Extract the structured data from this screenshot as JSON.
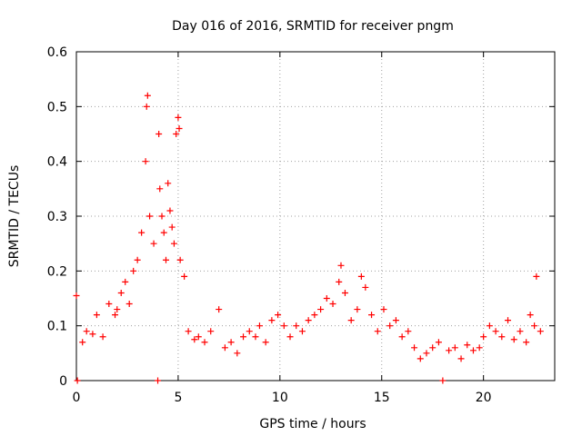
{
  "chart_data": {
    "type": "scatter",
    "title": "Day 016 of 2016, SRMTID for receiver pngm",
    "xlabel": "GPS time / hours",
    "ylabel": "SRMTID / TECUs",
    "xlim": [
      0,
      23.5
    ],
    "ylim": [
      0,
      0.6
    ],
    "x_ticks": [
      0,
      5,
      10,
      15,
      20
    ],
    "y_ticks": [
      0,
      0.1,
      0.2,
      0.3,
      0.4,
      0.5,
      0.6
    ],
    "x_tick_labels": [
      "0",
      "5",
      "10",
      "15",
      "20"
    ],
    "y_tick_labels": [
      "0",
      "0.1",
      "0.2",
      "0.3",
      "0.4",
      "0.5",
      "0.6"
    ],
    "grid": true,
    "marker": "+",
    "series": [
      {
        "name": "SRMTID",
        "color": "#ff0000",
        "x": [
          0.0,
          0.05,
          0.3,
          0.5,
          0.8,
          1.0,
          1.3,
          1.6,
          1.9,
          2.0,
          2.2,
          2.4,
          2.6,
          2.8,
          3.0,
          3.2,
          3.4,
          3.45,
          3.5,
          3.6,
          3.8,
          4.0,
          4.05,
          4.1,
          4.2,
          4.3,
          4.4,
          4.5,
          4.6,
          4.7,
          4.8,
          4.9,
          5.0,
          5.05,
          5.1,
          5.3,
          5.5,
          5.8,
          6.0,
          6.3,
          6.6,
          7.0,
          7.3,
          7.6,
          7.9,
          8.2,
          8.5,
          8.8,
          9.0,
          9.3,
          9.6,
          9.9,
          10.2,
          10.5,
          10.8,
          11.1,
          11.4,
          11.7,
          12.0,
          12.3,
          12.6,
          12.9,
          13.0,
          13.2,
          13.5,
          13.8,
          14.0,
          14.2,
          14.5,
          14.8,
          15.1,
          15.4,
          15.7,
          16.0,
          16.3,
          16.6,
          16.9,
          17.2,
          17.5,
          17.8,
          18.0,
          18.3,
          18.6,
          18.9,
          19.2,
          19.5,
          19.8,
          20.0,
          20.3,
          20.6,
          20.9,
          21.2,
          21.5,
          21.8,
          22.1,
          22.3,
          22.5,
          22.6,
          22.8
        ],
        "y": [
          0.155,
          0.0,
          0.07,
          0.09,
          0.085,
          0.12,
          0.08,
          0.14,
          0.12,
          0.13,
          0.16,
          0.18,
          0.14,
          0.2,
          0.22,
          0.27,
          0.4,
          0.5,
          0.52,
          0.3,
          0.25,
          0.0,
          0.45,
          0.35,
          0.3,
          0.27,
          0.22,
          0.36,
          0.31,
          0.28,
          0.25,
          0.45,
          0.48,
          0.46,
          0.22,
          0.19,
          0.09,
          0.075,
          0.08,
          0.07,
          0.09,
          0.13,
          0.06,
          0.07,
          0.05,
          0.08,
          0.09,
          0.08,
          0.1,
          0.07,
          0.11,
          0.12,
          0.1,
          0.08,
          0.1,
          0.09,
          0.11,
          0.12,
          0.13,
          0.15,
          0.14,
          0.18,
          0.21,
          0.16,
          0.11,
          0.13,
          0.19,
          0.17,
          0.12,
          0.09,
          0.13,
          0.1,
          0.11,
          0.08,
          0.09,
          0.06,
          0.04,
          0.05,
          0.06,
          0.07,
          0.0,
          0.055,
          0.06,
          0.04,
          0.065,
          0.055,
          0.06,
          0.08,
          0.1,
          0.09,
          0.08,
          0.11,
          0.075,
          0.09,
          0.07,
          0.12,
          0.1,
          0.19,
          0.09
        ]
      }
    ]
  }
}
